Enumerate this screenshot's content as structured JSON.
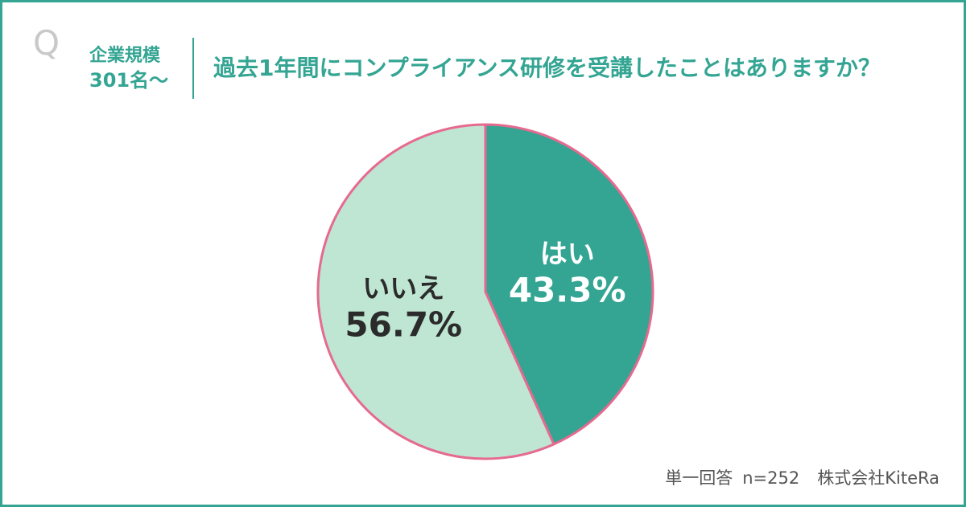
{
  "header": {
    "q_mark": "Q",
    "company_size_line1": "企業規模",
    "company_size_line2": "301名〜",
    "question": "過去1年間にコンプライアンス研修を受講したことはありますか？"
  },
  "chart_data": {
    "type": "pie",
    "slices": [
      {
        "label": "はい",
        "value": 43.3,
        "value_label": "43.3%",
        "color": "#34a593",
        "text_color": "#ffffff"
      },
      {
        "label": "いいえ",
        "value": 56.7,
        "value_label": "56.7%",
        "color": "#bfe5d3",
        "text_color": "#2b2b2b"
      }
    ],
    "border_color": "#e66a8f",
    "start": "12 o'clock",
    "direction": "clockwise"
  },
  "footer": {
    "answer_type": "単一回答",
    "sample": "n=252",
    "source": "株式会社KiteRa"
  }
}
